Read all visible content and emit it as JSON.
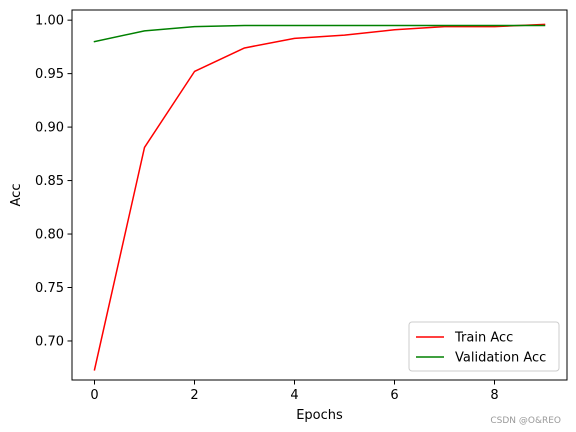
{
  "chart_data": {
    "type": "line",
    "xlabel": "Epochs",
    "ylabel": "Acc",
    "x": [
      0,
      1,
      2,
      3,
      4,
      5,
      6,
      7,
      8,
      9
    ],
    "xlim": [
      -0.45,
      9.45
    ],
    "ylim": [
      0.6635,
      1.0095
    ],
    "xticks": [
      0,
      2,
      4,
      6,
      8
    ],
    "yticks": [
      0.7,
      0.75,
      0.8,
      0.85,
      0.9,
      0.95,
      1.0
    ],
    "xtick_labels": [
      "0",
      "2",
      "4",
      "6",
      "8"
    ],
    "ytick_labels": [
      "0.70",
      "0.75",
      "0.80",
      "0.85",
      "0.90",
      "0.95",
      "1.00"
    ],
    "grid": false,
    "legend_position": "bottom-right",
    "series": [
      {
        "name": "Train Acc",
        "color": "#ff0000",
        "values": [
          0.673,
          0.881,
          0.952,
          0.974,
          0.983,
          0.986,
          0.991,
          0.994,
          0.994,
          0.996
        ]
      },
      {
        "name": "Validation Acc",
        "color": "#008000",
        "values": [
          0.98,
          0.99,
          0.994,
          0.995,
          0.995,
          0.995,
          0.995,
          0.995,
          0.995,
          0.995
        ]
      }
    ]
  },
  "watermark": "CSDN @O&REO"
}
